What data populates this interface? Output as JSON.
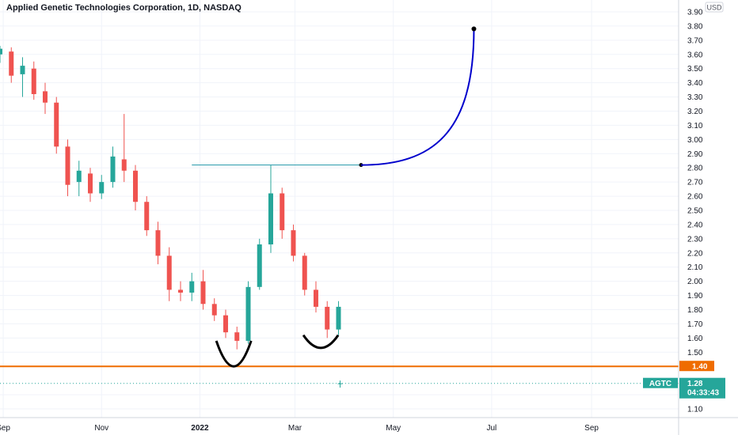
{
  "chart_data": {
    "type": "candlestick",
    "title": "Applied Genetic Technologies Corporation, 1D, NASDAQ",
    "currency": "USD",
    "ylim": [
      1.04,
      3.93
    ],
    "y_ticks": [
      3.9,
      3.8,
      3.7,
      3.6,
      3.5,
      3.4,
      3.3,
      3.2,
      3.1,
      3.0,
      2.9,
      2.8,
      2.7,
      2.6,
      2.5,
      2.4,
      2.3,
      2.2,
      2.1,
      2.0,
      1.9,
      1.8,
      1.7,
      1.6,
      1.5,
      1.2,
      1.1
    ],
    "x_ticks": [
      {
        "label": "Sep",
        "date": "2021-09-01"
      },
      {
        "label": "Nov",
        "date": "2021-11-01"
      },
      {
        "label": "2022",
        "date": "2022-01-01",
        "bold": true
      },
      {
        "label": "Mar",
        "date": "2022-03-01"
      },
      {
        "label": "May",
        "date": "2022-05-01"
      },
      {
        "label": "Jul",
        "date": "2022-07-01"
      },
      {
        "label": "Sep",
        "date": "2022-09-01"
      }
    ],
    "xlim": [
      "2021-08-30",
      "2022-10-25"
    ],
    "colors": {
      "up": "#26a69a",
      "down": "#ef5350",
      "support": "#ef6c00",
      "arc": "#0000cc",
      "neckline": "#2196a8",
      "cup": "#000000",
      "last_price": "#26a69a"
    },
    "series": [
      {
        "name": "AGTC",
        "ohlc": [
          [
            "2021-08-30",
            3.6,
            3.66,
            3.54,
            3.64
          ],
          [
            "2021-09-06",
            3.62,
            3.65,
            3.4,
            3.45
          ],
          [
            "2021-09-13",
            3.46,
            3.58,
            3.3,
            3.52
          ],
          [
            "2021-09-20",
            3.5,
            3.55,
            3.28,
            3.32
          ],
          [
            "2021-09-27",
            3.34,
            3.4,
            3.18,
            3.26
          ],
          [
            "2021-10-04",
            3.26,
            3.3,
            2.9,
            2.95
          ],
          [
            "2021-10-11",
            2.95,
            3.0,
            2.6,
            2.68
          ],
          [
            "2021-10-18",
            2.7,
            2.85,
            2.6,
            2.78
          ],
          [
            "2021-10-25",
            2.76,
            2.8,
            2.56,
            2.62
          ],
          [
            "2021-11-01",
            2.62,
            2.75,
            2.58,
            2.7
          ],
          [
            "2021-11-08",
            2.7,
            2.95,
            2.66,
            2.88
          ],
          [
            "2021-11-15",
            2.86,
            3.18,
            2.7,
            2.78
          ],
          [
            "2021-11-22",
            2.78,
            2.82,
            2.5,
            2.56
          ],
          [
            "2021-11-29",
            2.56,
            2.6,
            2.32,
            2.36
          ],
          [
            "2021-12-06",
            2.36,
            2.42,
            2.12,
            2.18
          ],
          [
            "2021-12-13",
            2.18,
            2.24,
            1.86,
            1.94
          ],
          [
            "2021-12-20",
            1.94,
            2.0,
            1.86,
            1.92
          ],
          [
            "2021-12-27",
            1.92,
            2.06,
            1.86,
            2.0
          ],
          [
            "2022-01-03",
            2.0,
            2.08,
            1.8,
            1.84
          ],
          [
            "2022-01-10",
            1.84,
            1.88,
            1.72,
            1.76
          ],
          [
            "2022-01-17",
            1.76,
            1.8,
            1.6,
            1.64
          ],
          [
            "2022-01-24",
            1.64,
            1.68,
            1.52,
            1.58
          ],
          [
            "2022-01-31",
            1.58,
            2.0,
            1.56,
            1.96
          ],
          [
            "2022-02-07",
            1.96,
            2.3,
            1.94,
            2.26
          ],
          [
            "2022-02-14",
            2.26,
            2.82,
            2.2,
            2.62
          ],
          [
            "2022-02-21",
            2.62,
            2.66,
            2.3,
            2.36
          ],
          [
            "2022-02-28",
            2.36,
            2.4,
            2.14,
            2.18
          ],
          [
            "2022-03-07",
            2.18,
            2.2,
            1.9,
            1.94
          ],
          [
            "2022-03-14",
            1.94,
            2.0,
            1.78,
            1.82
          ],
          [
            "2022-03-21",
            1.82,
            1.86,
            1.6,
            1.66
          ],
          [
            "2022-03-28",
            1.66,
            1.86,
            1.62,
            1.82
          ]
        ]
      },
      {
        "name": "AGTC spike",
        "ohlc": [
          [
            "2022-03-29",
            1.28,
            1.3,
            1.25,
            1.28
          ]
        ]
      }
    ],
    "annotations": {
      "support_level": 1.4,
      "neckline": {
        "price": 2.82,
        "start": "2021-12-27",
        "end": "2022-04-11"
      },
      "target_arc": {
        "start_date": "2022-04-11",
        "start_price": 2.82,
        "end_date": "2022-06-20",
        "end_price": 3.78
      },
      "cups": [
        {
          "center": "2022-01-22",
          "top_price": 1.58,
          "bottom_price": 1.4
        },
        {
          "center": "2022-03-17",
          "top_price": 1.62,
          "bottom_price": 1.53
        }
      ]
    },
    "badges": {
      "support_label": "1.40",
      "ticker": "AGTC",
      "last_price": "1.28",
      "countdown": "04:33:43"
    }
  }
}
